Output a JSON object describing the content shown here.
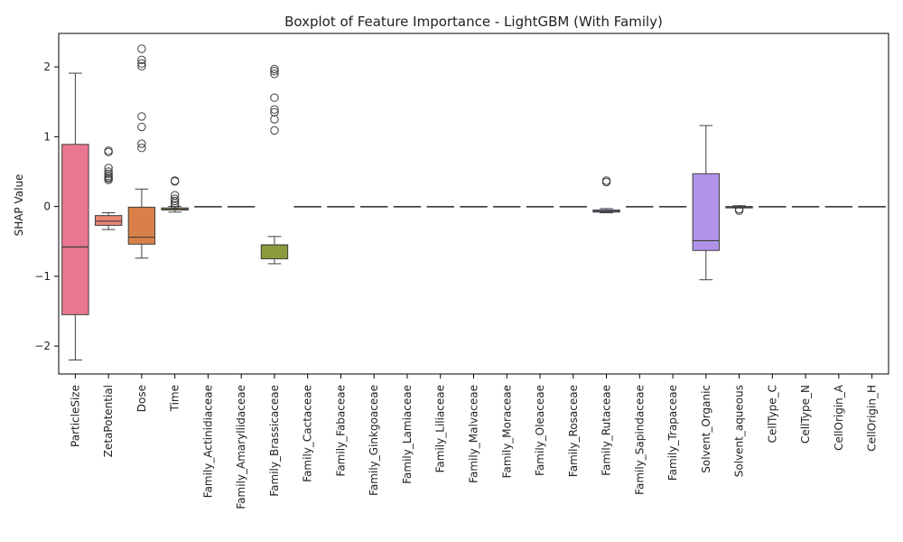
{
  "chart_data": {
    "type": "boxplot",
    "title": "Boxplot of Feature Importance - LightGBM (With Family)",
    "xlabel": "",
    "ylabel": "SHAP Value",
    "ylim": [
      -2.4,
      2.48
    ],
    "yticks": [
      -2,
      -1,
      0,
      1,
      2
    ],
    "ytick_labels": [
      "−2",
      "−1",
      "0",
      "1",
      "2"
    ],
    "grid": false,
    "legend": "none",
    "categories": [
      "ParticleSize",
      "ZetaPotential",
      "Dose",
      "Time",
      "Family_Actinidiaceae",
      "Family_Amaryllidaceae",
      "Family_Brassicaceae",
      "Family_Cactaceae",
      "Family_Fabaceae",
      "Family_Ginkgoaceae",
      "Family_Lamiaceae",
      "Family_Liliaceae",
      "Family_Malvaceae",
      "Family_Moraceae",
      "Family_Oleaceae",
      "Family_Rosaceae",
      "Family_Rutaceae",
      "Family_Sapindaceae",
      "Family_Trapaceae",
      "Solvent_Organic",
      "Solvent_aqueous",
      "CellType_C",
      "CellType_N",
      "CellOrigin_A",
      "CellOrigin_H"
    ],
    "boxes": [
      {
        "q1": -1.55,
        "median": -0.58,
        "q3": 0.89,
        "whislo": -2.2,
        "whishi": 1.91,
        "fliers": [],
        "color": "#e8778f"
      },
      {
        "q1": -0.27,
        "median": -0.21,
        "q3": -0.13,
        "whislo": -0.33,
        "whishi": -0.09,
        "fliers": [
          0.38,
          0.4,
          0.42,
          0.44,
          0.47,
          0.5,
          0.55,
          0.78,
          0.8
        ],
        "color": "#e98474"
      },
      {
        "q1": -0.54,
        "median": -0.44,
        "q3": -0.01,
        "whislo": -0.74,
        "whishi": 0.25,
        "fliers": [
          0.84,
          0.9,
          1.14,
          1.29,
          2.01,
          2.05,
          2.1,
          2.26
        ],
        "color": "#d98048"
      },
      {
        "q1": -0.05,
        "median": -0.04,
        "q3": -0.02,
        "whislo": -0.08,
        "whishi": 0.0,
        "fliers": [
          0.02,
          0.05,
          0.08,
          0.11,
          0.16,
          0.36,
          0.37
        ],
        "color": "#b98f44"
      },
      {
        "q1": 0.0,
        "median": 0.0,
        "q3": 0.0,
        "whislo": 0.0,
        "whishi": 0.0,
        "fliers": [],
        "color": "#a4953c"
      },
      {
        "q1": 0.0,
        "median": 0.0,
        "q3": 0.0,
        "whislo": 0.0,
        "whishi": 0.0,
        "fliers": [],
        "color": "#959a3a"
      },
      {
        "q1": -0.75,
        "median": -0.55,
        "q3": -0.55,
        "whislo": -0.82,
        "whishi": -0.43,
        "fliers": [
          1.09,
          1.25,
          1.35,
          1.39,
          1.56,
          1.9,
          1.94,
          1.97
        ],
        "color": "#8a9a3d"
      },
      {
        "q1": 0.0,
        "median": 0.0,
        "q3": 0.0,
        "whislo": 0.0,
        "whishi": 0.0,
        "fliers": [],
        "color": "#6fa244"
      },
      {
        "q1": 0.0,
        "median": 0.0,
        "q3": 0.0,
        "whislo": 0.0,
        "whishi": 0.0,
        "fliers": [],
        "color": "#4caa5b"
      },
      {
        "q1": 0.0,
        "median": 0.0,
        "q3": 0.0,
        "whislo": 0.0,
        "whishi": 0.0,
        "fliers": [],
        "color": "#43a886"
      },
      {
        "q1": 0.0,
        "median": 0.0,
        "q3": 0.0,
        "whislo": 0.0,
        "whishi": 0.0,
        "fliers": [],
        "color": "#45a79a"
      },
      {
        "q1": 0.0,
        "median": 0.0,
        "q3": 0.0,
        "whislo": 0.0,
        "whishi": 0.0,
        "fliers": [],
        "color": "#46a6a8"
      },
      {
        "q1": 0.0,
        "median": 0.0,
        "q3": 0.0,
        "whislo": 0.0,
        "whishi": 0.0,
        "fliers": [],
        "color": "#48a5b6"
      },
      {
        "q1": 0.0,
        "median": 0.0,
        "q3": 0.0,
        "whislo": 0.0,
        "whishi": 0.0,
        "fliers": [],
        "color": "#4ba4c6"
      },
      {
        "q1": 0.0,
        "median": 0.0,
        "q3": 0.0,
        "whislo": 0.0,
        "whishi": 0.0,
        "fliers": [],
        "color": "#52a2d9"
      },
      {
        "q1": 0.0,
        "median": 0.0,
        "q3": 0.0,
        "whislo": 0.0,
        "whishi": 0.0,
        "fliers": [],
        "color": "#6a9de6"
      },
      {
        "q1": -0.08,
        "median": -0.07,
        "q3": -0.05,
        "whislo": -0.09,
        "whishi": -0.03,
        "fliers": [
          0.35,
          0.37
        ],
        "color": "#6f8fd9"
      },
      {
        "q1": 0.0,
        "median": 0.0,
        "q3": 0.0,
        "whislo": 0.0,
        "whishi": 0.0,
        "fliers": [],
        "color": "#8c8fe6"
      },
      {
        "q1": 0.0,
        "median": 0.0,
        "q3": 0.0,
        "whislo": 0.0,
        "whishi": 0.0,
        "fliers": [],
        "color": "#a38ce8"
      },
      {
        "q1": -0.63,
        "median": -0.49,
        "q3": 0.47,
        "whislo": -1.05,
        "whishi": 1.16,
        "fliers": [],
        "color": "#b093e8"
      },
      {
        "q1": -0.02,
        "median": -0.01,
        "q3": 0.0,
        "whislo": -0.02,
        "whishi": 0.01,
        "fliers": [
          -0.06,
          -0.04
        ],
        "color": "#c880e0"
      },
      {
        "q1": 0.0,
        "median": 0.0,
        "q3": 0.0,
        "whislo": 0.0,
        "whishi": 0.0,
        "fliers": [],
        "color": "#dc79d3"
      },
      {
        "q1": 0.0,
        "median": 0.0,
        "q3": 0.0,
        "whislo": 0.0,
        "whishi": 0.0,
        "fliers": [],
        "color": "#e676c0"
      },
      {
        "q1": 0.0,
        "median": 0.0,
        "q3": 0.0,
        "whislo": 0.0,
        "whishi": 0.0,
        "fliers": [],
        "color": "#e977ad"
      },
      {
        "q1": 0.0,
        "median": 0.0,
        "q3": 0.0,
        "whislo": 0.0,
        "whishi": 0.0,
        "fliers": [],
        "color": "#ea779b"
      }
    ]
  }
}
